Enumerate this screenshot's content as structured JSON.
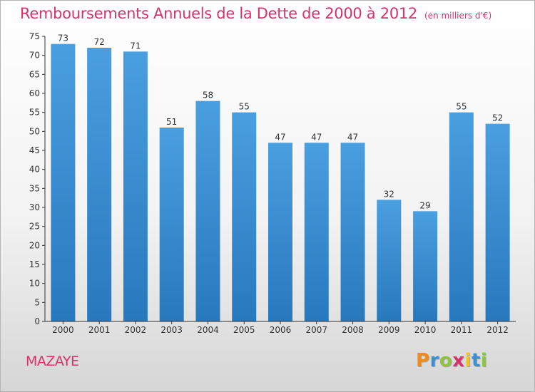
{
  "chart_data": {
    "type": "bar",
    "title": "Remboursements Annuels de la Dette de 2000 à 2012",
    "subtitle": "(en milliers d'€)",
    "categories": [
      "2000",
      "2001",
      "2002",
      "2003",
      "2004",
      "2005",
      "2006",
      "2007",
      "2008",
      "2009",
      "2010",
      "2011",
      "2012"
    ],
    "values": [
      73,
      72,
      71,
      51,
      58,
      55,
      47,
      47,
      47,
      32,
      29,
      55,
      52
    ],
    "ylim": [
      0,
      75
    ],
    "yticks": [
      0,
      5,
      10,
      15,
      20,
      25,
      30,
      35,
      40,
      45,
      50,
      55,
      60,
      65,
      70,
      75
    ],
    "grid": false,
    "data_labels": true,
    "bar_color": "#4a9fe0",
    "bar_color_dark": "#2878bd"
  },
  "footer": {
    "town": "MAZAYE",
    "brand_letters": [
      "P",
      "r",
      "o",
      "x",
      "i",
      "t",
      "i"
    ],
    "brand_colors": [
      "#f08c1a",
      "#3a8fd6",
      "#8cc63f",
      "#d6336c",
      "#f0c419",
      "#3a8fd6",
      "#8cc63f"
    ]
  },
  "colors": {
    "accent": "#d6336c",
    "axis": "#333333"
  }
}
